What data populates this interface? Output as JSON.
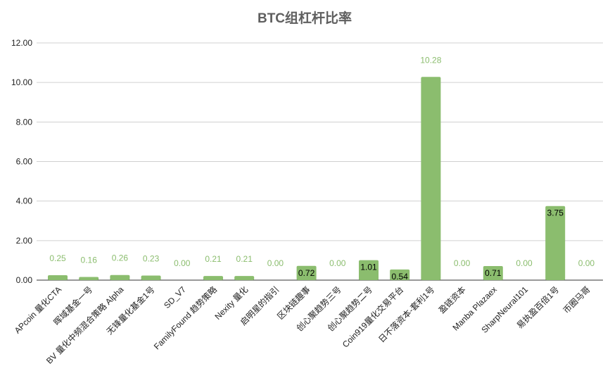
{
  "chart_data": {
    "type": "bar",
    "title": "BTC组杠杆比率",
    "xlabel": "",
    "ylabel": "",
    "ylim": [
      0,
      12
    ],
    "yticks": [
      "0.00",
      "2.00",
      "4.00",
      "6.00",
      "8.00",
      "10.00",
      "12.00"
    ],
    "grid": true,
    "legend": "none",
    "bar_color": "#8bbd6e",
    "label_color_outside": "#8bbd6e",
    "label_color_inside": "#000000",
    "categories": [
      "APcoin 量化CTA",
      "晖域基金一号",
      "BV 量化中频混合策略 Alpha",
      "无锋量化基金1号",
      "SD_V7",
      "FamilyFound 趋势策略",
      "Nexity 量化",
      "启明星的指引",
      "区块链趣事",
      "创心聚趋势三号",
      "创心聚趋势二号",
      "Coin919量化交易平台",
      "日不落资本-套利1号",
      "盈链资本",
      "Manba Plazaex",
      "SharpNeural101",
      "易执盈百倍1号",
      "币圈马哥"
    ],
    "values": [
      0.25,
      0.16,
      0.26,
      0.23,
      0.0,
      0.21,
      0.21,
      0.0,
      0.72,
      0.0,
      1.01,
      0.54,
      10.28,
      0.0,
      0.71,
      0.0,
      3.75,
      0.0
    ],
    "value_labels": [
      "0.25",
      "0.16",
      "0.26",
      "0.23",
      "0.00",
      "0.21",
      "0.21",
      "0.00",
      "0.72",
      "0.00",
      "1.01",
      "0.54",
      "10.28",
      "0.00",
      "0.71",
      "0.00",
      "3.75",
      "0.00"
    ]
  }
}
